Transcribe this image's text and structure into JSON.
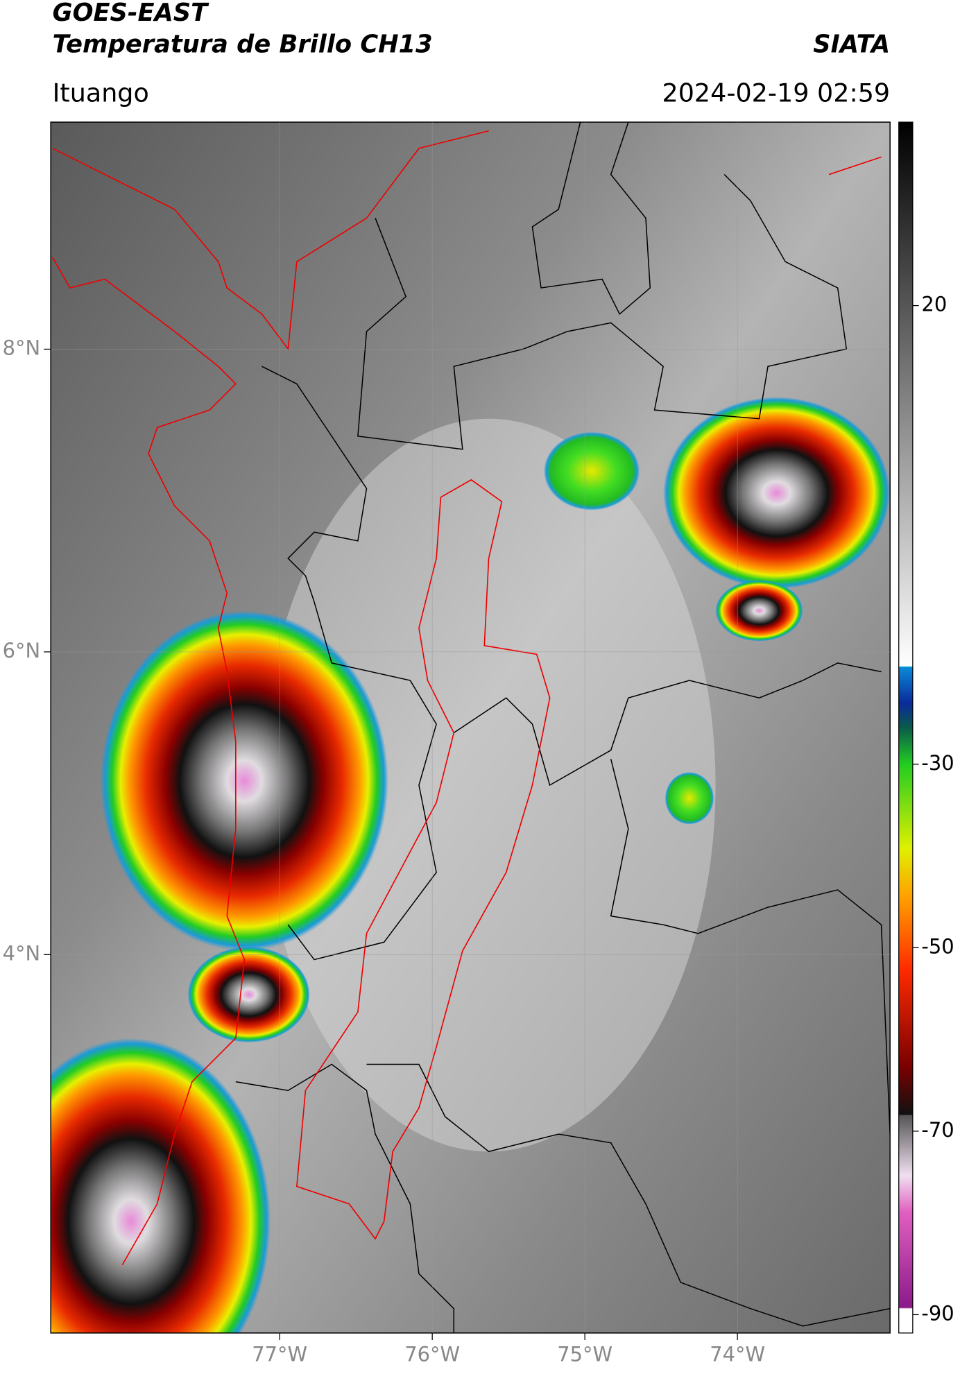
{
  "header": {
    "satellite": "GOES-EAST",
    "product": "Temperatura de Brillo CH13",
    "agency": "SIATA",
    "region": "Ituango",
    "datetime": "2024-02-19 02:59"
  },
  "chart_data": {
    "type": "map",
    "xlim": [
      -78.5,
      -73
    ],
    "ylim": [
      1.5,
      9.5
    ],
    "xticks": [
      {
        "value": -77,
        "label": "77°W"
      },
      {
        "value": -76,
        "label": "76°W"
      },
      {
        "value": -75,
        "label": "75°W"
      },
      {
        "value": -74,
        "label": "74°W"
      }
    ],
    "yticks": [
      {
        "value": 4,
        "label": "4°N"
      },
      {
        "value": 6,
        "label": "6°N"
      },
      {
        "value": 8,
        "label": "8°N"
      }
    ],
    "grid": true,
    "colorbar": {
      "lim": [
        -92,
        40
      ],
      "ticks": [
        -90,
        -70,
        -50,
        -30,
        20
      ]
    }
  }
}
